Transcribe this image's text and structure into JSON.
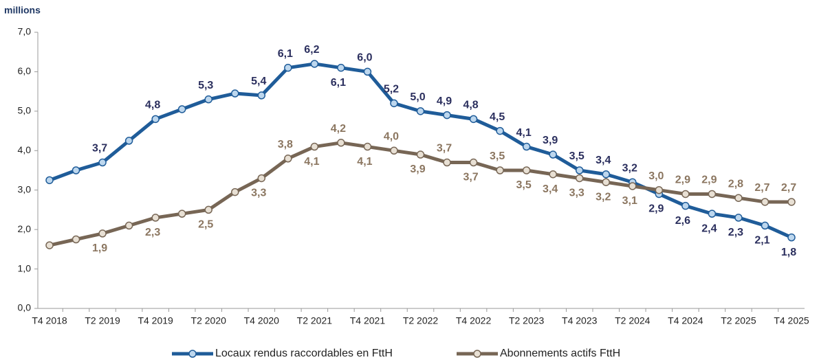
{
  "chart_data": {
    "type": "line",
    "unit_label": "millions",
    "categories": [
      "T4 2018",
      null,
      "T2 2019",
      null,
      "T4 2019",
      null,
      "T2 2020",
      null,
      "T4 2020",
      null,
      "T2 2021",
      null,
      "T4 2021",
      null,
      "T2 2022",
      null,
      "T4 2022",
      null,
      "T2 2023",
      null,
      "T4 2023",
      null,
      "T2 2024",
      null,
      "T4 2024",
      null,
      "T2 2025",
      null,
      "T4 2025"
    ],
    "series": [
      {
        "name": "Locaux rendus raccordables en FttH",
        "color": "#1f5c99",
        "marker_color": "#bdd7ee",
        "label_color": "#2b2f5e",
        "values": [
          3.25,
          3.5,
          3.7,
          4.25,
          4.8,
          5.05,
          5.3,
          5.45,
          5.4,
          6.1,
          6.2,
          6.1,
          6.0,
          5.2,
          5.0,
          4.9,
          4.8,
          4.5,
          4.1,
          3.9,
          3.5,
          3.4,
          3.2,
          2.9,
          2.6,
          2.4,
          2.3,
          2.1,
          1.8
        ],
        "value_labels": [
          null,
          null,
          "3,7",
          null,
          "4,8",
          null,
          "5,3",
          null,
          "5,4",
          "6,1",
          "6,2",
          "6,1",
          "6,0",
          "5,2",
          "5,0",
          "4,9",
          "4,8",
          "4,5",
          "4,1",
          "3,9",
          "3,5",
          "3,4",
          "3,2",
          "2,9",
          "2,6",
          "2,4",
          "2,3",
          "2,1",
          "1,8"
        ]
      },
      {
        "name": "Abonnements actifs FttH",
        "color": "#776655",
        "marker_color": "#e8e0d4",
        "label_color": "#8b7660",
        "values": [
          1.6,
          1.75,
          1.9,
          2.1,
          2.3,
          2.4,
          2.5,
          2.95,
          3.3,
          3.8,
          4.1,
          4.2,
          4.1,
          4.0,
          3.9,
          3.7,
          3.7,
          3.5,
          3.5,
          3.4,
          3.3,
          3.2,
          3.1,
          3.0,
          2.9,
          2.9,
          2.8,
          2.7,
          2.7
        ],
        "value_labels": [
          null,
          null,
          "1,9",
          null,
          "2,3",
          null,
          "2,5",
          null,
          "3,3",
          "3,8",
          "4,1",
          "4,2",
          "4,1",
          "4,0",
          "3,9",
          "3,7",
          "3,7",
          "3,5",
          "3,5",
          "3,4",
          "3,3",
          "3,2",
          "3,1",
          "3,0",
          "2,9",
          "2,9",
          "2,8",
          "2,7",
          "2,7"
        ]
      }
    ],
    "ylim": [
      0,
      7
    ],
    "yticks": [
      {
        "value": 0,
        "label": "0,0"
      },
      {
        "value": 1,
        "label": "1,0"
      },
      {
        "value": 2,
        "label": "2,0"
      },
      {
        "value": 3,
        "label": "3,0"
      },
      {
        "value": 4,
        "label": "4,0"
      },
      {
        "value": 5,
        "label": "5,0"
      },
      {
        "value": 6,
        "label": "6,0"
      },
      {
        "value": 7,
        "label": "7,0"
      }
    ],
    "legend": "bottom"
  }
}
